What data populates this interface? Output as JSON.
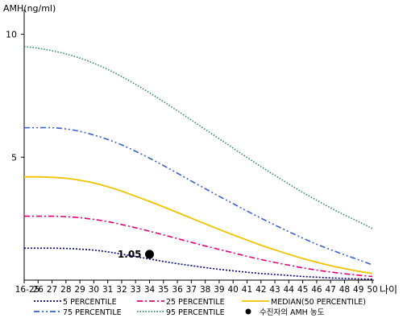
{
  "chart_data": {
    "type": "line",
    "ylabel": "AMH(ng/ml)",
    "xlabel": "나이",
    "ylim": [
      0,
      11
    ],
    "yticks": [
      5,
      10
    ],
    "categories": [
      "16-25",
      "26",
      "27",
      "28",
      "29",
      "30",
      "31",
      "32",
      "33",
      "34",
      "35",
      "36",
      "37",
      "38",
      "39",
      "40",
      "41",
      "42",
      "43",
      "44",
      "45",
      "46",
      "47",
      "48",
      "49",
      "50"
    ],
    "series": [
      {
        "name": "5 PERCENTILE",
        "color": "#000080",
        "style": "dotted",
        "values": [
          1.3,
          1.3,
          1.3,
          1.29,
          1.26,
          1.22,
          1.15,
          1.06,
          0.96,
          0.86,
          0.76,
          0.67,
          0.59,
          0.51,
          0.44,
          0.38,
          0.32,
          0.27,
          0.23,
          0.19,
          0.15,
          0.12,
          0.09,
          0.07,
          0.05,
          0.04
        ]
      },
      {
        "name": "25 PERCENTILE",
        "color": "#e0007a",
        "style": "dashdot",
        "values": [
          2.6,
          2.6,
          2.6,
          2.58,
          2.54,
          2.47,
          2.38,
          2.26,
          2.13,
          1.99,
          1.84,
          1.69,
          1.54,
          1.39,
          1.25,
          1.11,
          0.97,
          0.84,
          0.72,
          0.61,
          0.5,
          0.41,
          0.33,
          0.26,
          0.2,
          0.15
        ]
      },
      {
        "name": "MEDIAN(50 PERCENTILE)",
        "color": "#f2c200",
        "style": "solid",
        "values": [
          4.2,
          4.2,
          4.18,
          4.14,
          4.06,
          3.95,
          3.8,
          3.62,
          3.41,
          3.2,
          2.98,
          2.75,
          2.52,
          2.29,
          2.06,
          1.84,
          1.63,
          1.42,
          1.23,
          1.05,
          0.88,
          0.73,
          0.59,
          0.47,
          0.36,
          0.27
        ]
      },
      {
        "name": "75 PERCENTILE",
        "color": "#3a5fcd",
        "style": "dashdotdot",
        "values": [
          6.2,
          6.2,
          6.2,
          6.15,
          6.05,
          5.9,
          5.72,
          5.5,
          5.24,
          4.96,
          4.66,
          4.35,
          4.03,
          3.72,
          3.41,
          3.11,
          2.81,
          2.52,
          2.24,
          1.97,
          1.71,
          1.46,
          1.24,
          1.03,
          0.83,
          0.62
        ]
      },
      {
        "name": "95 PERCENTILE",
        "color": "#2e8b57",
        "style": "dense-dotted",
        "values": [
          9.5,
          9.43,
          9.33,
          9.2,
          9.03,
          8.82,
          8.57,
          8.28,
          7.96,
          7.62,
          7.26,
          6.89,
          6.51,
          6.13,
          5.75,
          5.37,
          4.99,
          4.62,
          4.26,
          3.91,
          3.57,
          3.25,
          2.94,
          2.65,
          2.38,
          2.1
        ]
      }
    ],
    "annotations": [
      {
        "name": "수진자의 AMH 농도",
        "x": "34",
        "y": 1.05,
        "label": "1.05",
        "marker": "circle",
        "color": "#000000"
      }
    ],
    "legend": {
      "position": "bottom",
      "items": [
        "5 PERCENTILE",
        "25 PERCENTILE",
        "MEDIAN(50 PERCENTILE)",
        "75 PERCENTILE",
        "95 PERCENTILE",
        "수진자의 AMH 농도"
      ]
    }
  }
}
